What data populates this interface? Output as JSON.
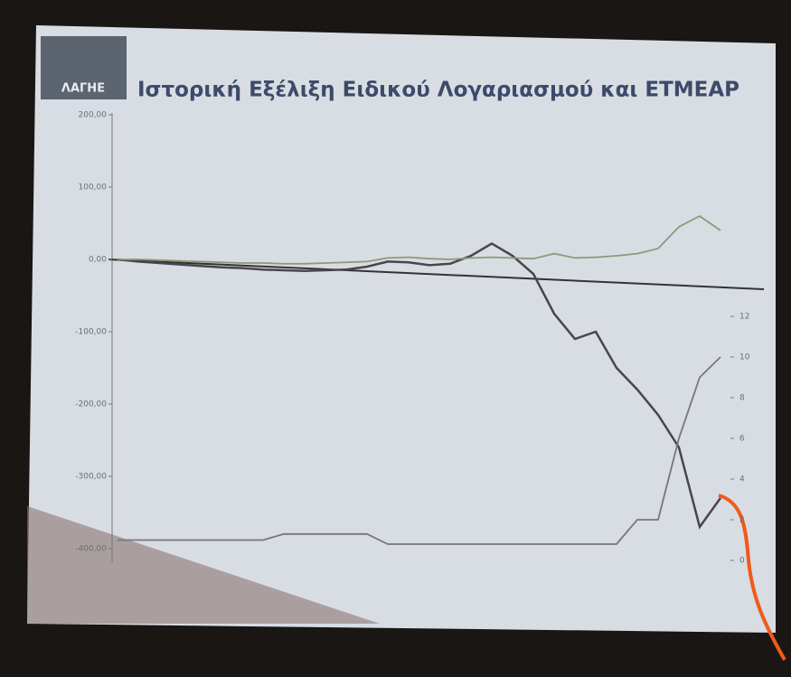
{
  "logo": "ΛΑΓΗΕ",
  "chart_data": {
    "type": "line",
    "title": "Ιστορική Εξέλιξη Ειδικού Λογαριασμού και ΕΤΜΕΑΡ",
    "ylim": [
      -400,
      200
    ],
    "yticks": [
      {
        "value": 200,
        "label": "200,00"
      },
      {
        "value": 100,
        "label": "100,00"
      },
      {
        "value": 0,
        "label": "0,00"
      },
      {
        "value": -100,
        "label": "-100,00"
      },
      {
        "value": -200,
        "label": "-200,00"
      },
      {
        "value": -300,
        "label": "-300,00"
      },
      {
        "value": -400,
        "label": "-400,00"
      }
    ],
    "y2lim": [
      0,
      12
    ],
    "y2ticks": [
      0,
      2,
      4,
      6,
      8,
      10,
      12
    ],
    "series": [
      {
        "color": "#4a4452",
        "values": [
          0,
          -3,
          -5,
          -7,
          -9,
          -11,
          -12,
          -14,
          -15,
          -16,
          -15,
          -14,
          -10,
          -3,
          -4,
          -8,
          -6,
          5,
          22,
          5,
          -20,
          -75,
          -110,
          -100,
          -150,
          -180,
          -215,
          -260,
          -370,
          -330
        ]
      },
      {
        "color": "#8c9a7a",
        "values": [
          0,
          0,
          -1,
          -2,
          -3,
          -4,
          -5,
          -5,
          -6,
          -6,
          -5,
          -4,
          -3,
          2,
          3,
          1,
          0,
          2,
          3,
          2,
          1,
          8,
          2,
          3,
          5,
          8,
          15,
          45,
          60,
          40
        ]
      },
      {
        "color": "#77767c",
        "axis": "y2",
        "values": [
          1,
          1,
          1,
          1,
          1,
          1,
          1,
          1,
          1.3,
          1.3,
          1.3,
          1.3,
          1.3,
          0.8,
          0.8,
          0.8,
          0.8,
          0.8,
          0.8,
          0.8,
          0.8,
          0.8,
          0.8,
          0.8,
          0.8,
          2,
          2,
          6,
          9,
          10
        ]
      }
    ]
  }
}
